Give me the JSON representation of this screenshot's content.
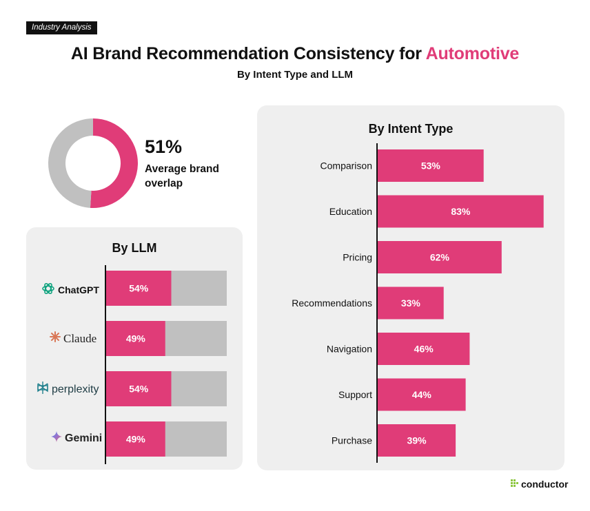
{
  "header": {
    "tag": "Industry Analysis",
    "title_main": "AI Brand Recommendation Consistency for ",
    "title_accent": "Automotive",
    "subtitle": "By Intent Type and LLM"
  },
  "summary": {
    "value_text": "51%",
    "value": 51,
    "label": "Average brand overlap"
  },
  "llm_panel": {
    "title": "By LLM",
    "items": [
      {
        "name": "ChatGPT",
        "icon": "chatgpt-logo-icon"
      },
      {
        "name": "Claude",
        "icon": "claude-logo-icon"
      },
      {
        "name": "perplexity",
        "icon": "perplexity-logo-icon"
      },
      {
        "name": "Gemini",
        "icon": "gemini-logo-icon"
      }
    ]
  },
  "intent_panel": {
    "title": "By Intent Type"
  },
  "brand": {
    "name": "conductor",
    "icon": "conductor-logo-icon"
  },
  "colors": {
    "accent": "#e03c78",
    "track": "#c0c0c0",
    "panel": "#efefef",
    "text": "#111111"
  },
  "chart_data": [
    {
      "type": "pie",
      "values": [
        51,
        49
      ],
      "labels": [
        "overlap",
        "remainder"
      ],
      "colors": [
        "#e03c78",
        "#c0c0c0"
      ]
    },
    {
      "type": "bar",
      "orientation": "horizontal",
      "title": "By LLM",
      "categories": [
        "ChatGPT",
        "Claude",
        "perplexity",
        "Gemini"
      ],
      "values": [
        54,
        49,
        54,
        49
      ],
      "labels": [
        "54%",
        "49%",
        "54%",
        "49%"
      ],
      "xlim": [
        0,
        100
      ],
      "stacked_remainder": true
    },
    {
      "type": "bar",
      "orientation": "horizontal",
      "title": "By Intent Type",
      "categories": [
        "Comparison",
        "Education",
        "Pricing",
        "Recommendations",
        "Navigation",
        "Support",
        "Purchase"
      ],
      "values": [
        53,
        83,
        62,
        33,
        46,
        44,
        39
      ],
      "labels": [
        "53%",
        "83%",
        "62%",
        "33%",
        "46%",
        "44%",
        "39%"
      ],
      "xlim": [
        0,
        100
      ]
    }
  ]
}
